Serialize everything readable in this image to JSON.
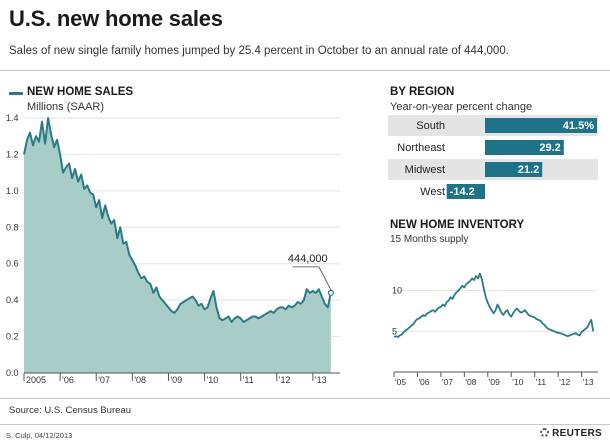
{
  "header": {
    "title": "U.S. new home sales",
    "subtitle": "Sales of new single family homes jumped by 25.4 percent in October to an annual rate of 444,000."
  },
  "colors": {
    "line": "#2a7b86",
    "area": "#a8ccc8",
    "bar": "#1f7389",
    "axis": "#555555"
  },
  "footer": {
    "source": "Source: U.S. Census Bureau",
    "credit": "S. Culp, 04/12/2013",
    "brand": "REUTERS"
  },
  "chart_data": [
    {
      "type": "area",
      "title": "NEW HOME SALES",
      "ylabel": "Millions (SAAR)",
      "ylim": [
        0,
        1.4
      ],
      "yticks": [
        0.0,
        0.2,
        0.4,
        0.6,
        0.8,
        1.0,
        1.2,
        1.4
      ],
      "ytick_labels": [
        "0.0",
        "0.2",
        "0.4",
        "0.6",
        "0.8",
        "1.0",
        "1.2",
        "1.4"
      ],
      "xtick_labels": [
        "2005",
        "'06",
        "'07",
        "'08",
        "'09",
        "'10",
        "'11",
        "'12",
        "'13"
      ],
      "annotation": "444,000",
      "x_start": 2005.0,
      "x_step": 0.0833,
      "values": [
        1.2,
        1.28,
        1.32,
        1.25,
        1.3,
        1.27,
        1.38,
        1.26,
        1.4,
        1.31,
        1.24,
        1.28,
        1.2,
        1.1,
        1.13,
        1.15,
        1.07,
        1.12,
        1.05,
        1.09,
        1.01,
        1.03,
        0.99,
        0.98,
        0.91,
        0.95,
        0.85,
        0.92,
        0.86,
        0.82,
        0.84,
        0.74,
        0.8,
        0.71,
        0.72,
        0.65,
        0.62,
        0.59,
        0.55,
        0.52,
        0.53,
        0.5,
        0.49,
        0.44,
        0.47,
        0.42,
        0.4,
        0.38,
        0.36,
        0.34,
        0.33,
        0.35,
        0.38,
        0.39,
        0.4,
        0.41,
        0.42,
        0.4,
        0.37,
        0.38,
        0.35,
        0.36,
        0.41,
        0.45,
        0.36,
        0.3,
        0.29,
        0.3,
        0.31,
        0.28,
        0.3,
        0.31,
        0.3,
        0.28,
        0.29,
        0.3,
        0.31,
        0.31,
        0.3,
        0.31,
        0.32,
        0.33,
        0.34,
        0.33,
        0.35,
        0.36,
        0.36,
        0.35,
        0.37,
        0.36,
        0.37,
        0.39,
        0.38,
        0.4,
        0.46,
        0.44,
        0.45,
        0.44,
        0.46,
        0.42,
        0.38,
        0.36,
        0.44
      ]
    },
    {
      "type": "bar",
      "title": "BY REGION",
      "subtitle": "Year-on-year percent change",
      "categories": [
        "South",
        "Northeast",
        "Midwest",
        "West"
      ],
      "values": [
        41.5,
        29.2,
        21.2,
        -14.2
      ],
      "value_labels": [
        "41.5%",
        "29.2",
        "21.2",
        "-14.2"
      ]
    },
    {
      "type": "line",
      "title": "NEW HOME INVENTORY",
      "ylabel": "15 Months supply",
      "ylim": [
        0,
        15
      ],
      "yticks": [
        5,
        10
      ],
      "ytick_labels": [
        "5",
        "10"
      ],
      "xtick_labels": [
        "'05",
        "'06",
        "'07",
        "'08",
        "'09",
        "'10",
        "'11",
        "'12",
        "'13"
      ],
      "x_start": 2005.0,
      "x_step": 0.0833,
      "values": [
        4.3,
        4.4,
        4.3,
        4.5,
        4.6,
        4.9,
        5.1,
        5.3,
        5.5,
        5.7,
        5.9,
        6.3,
        6.5,
        6.6,
        6.8,
        7.0,
        6.9,
        7.2,
        7.3,
        7.5,
        7.6,
        7.4,
        7.7,
        7.9,
        8.0,
        8.3,
        8.1,
        8.6,
        8.8,
        9.2,
        9.0,
        9.5,
        9.8,
        10.0,
        10.3,
        10.6,
        10.4,
        10.8,
        11.0,
        11.2,
        11.5,
        11.3,
        11.8,
        11.5,
        12.1,
        11.4,
        10.2,
        9.2,
        8.5,
        8.0,
        7.6,
        7.2,
        7.6,
        8.3,
        7.8,
        7.3,
        7.0,
        7.4,
        7.6,
        7.1,
        6.8,
        7.2,
        7.6,
        7.8,
        7.5,
        7.3,
        7.4,
        7.6,
        7.3,
        7.0,
        6.9,
        6.8,
        6.7,
        6.5,
        6.4,
        6.3,
        6.0,
        5.8,
        5.5,
        5.3,
        5.2,
        5.1,
        5.0,
        4.9,
        4.8,
        4.8,
        4.7,
        4.6,
        4.5,
        4.4,
        4.5,
        4.6,
        4.7,
        4.8,
        4.6,
        4.5,
        4.9,
        5.1,
        5.3,
        5.5,
        6.0,
        6.4,
        5.0
      ]
    }
  ]
}
